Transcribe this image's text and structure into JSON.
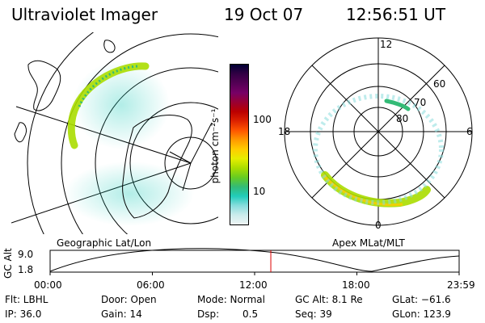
{
  "header": {
    "instrument": "Ultraviolet Imager",
    "date": "19 Oct 07",
    "time": "12:56:51 UT"
  },
  "colorbar": {
    "label": "photon cm⁻²s⁻¹",
    "ticks": [
      "100",
      "10"
    ],
    "colors": [
      "#000033",
      "#330044",
      "#550055",
      "#770066",
      "#990033",
      "#bb0000",
      "#dd2200",
      "#ff5500",
      "#ff9900",
      "#ffcc00",
      "#e6ee00",
      "#aadd00",
      "#66cc22",
      "#33bb77",
      "#22ccbb",
      "#88dddd",
      "#ccecec",
      "#eef4f4"
    ]
  },
  "left_panel": {
    "caption": "Geographic Lat/Lon"
  },
  "right_panel": {
    "caption": "Apex MLat/MLT",
    "mlt_labels": {
      "top": "12",
      "left": "18",
      "right": "6",
      "bottom": "0"
    },
    "mlat_labels": [
      "60",
      "70",
      "80"
    ]
  },
  "altitude_plot": {
    "ylabel": "GC Alt",
    "yticks": [
      "9.0",
      "1.8"
    ],
    "xticks": [
      "00:00",
      "06:00",
      "12:00",
      "18:00",
      "23:59"
    ],
    "current_time_hours": 12.95
  },
  "status": {
    "filter": "Flt: LBHL",
    "door": "Door: Open",
    "mode": "Mode: Normal",
    "gc_alt": "GC Alt: 8.1 Re",
    "glat": "GLat: −61.6",
    "ip": "IP: 36.0",
    "gain": "Gain: 14",
    "dsp_label": "Dsp:",
    "dsp_value": "0.5",
    "seq": "Seq: 39",
    "glon": "GLon: 123.9"
  }
}
